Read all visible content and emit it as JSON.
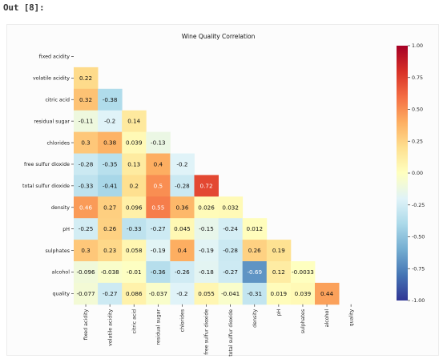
{
  "prompt": "Out [8]:",
  "chart_data": {
    "type": "heatmap",
    "title": "Wine Quality Correlation",
    "categories": [
      "fixed acidity",
      "volatile acidity",
      "citric acid",
      "residual sugar",
      "chlorides",
      "free sulfur dioxide",
      "total sulfur dioxide",
      "density",
      "pH",
      "sulphates",
      "alcohol",
      "quality"
    ],
    "values": [
      [],
      [
        "0.22"
      ],
      [
        "0.32",
        "-0.38"
      ],
      [
        "-0.11",
        "-0.2",
        "0.14"
      ],
      [
        "0.3",
        "0.38",
        "0.039",
        "-0.13"
      ],
      [
        "-0.28",
        "-0.35",
        "0.13",
        "0.4",
        "-0.2"
      ],
      [
        "-0.33",
        "-0.41",
        "0.2",
        "0.5",
        "-0.28",
        "0.72"
      ],
      [
        "0.46",
        "0.27",
        "0.096",
        "0.55",
        "0.36",
        "0.026",
        "0.032"
      ],
      [
        "-0.25",
        "0.26",
        "-0.33",
        "-0.27",
        "0.045",
        "-0.15",
        "-0.24",
        "0.012"
      ],
      [
        "0.3",
        "0.23",
        "0.058",
        "-0.19",
        "0.4",
        "-0.19",
        "-0.28",
        "0.26",
        "0.19"
      ],
      [
        "-0.096",
        "-0.038",
        "-0.01",
        "-0.36",
        "-0.26",
        "-0.18",
        "-0.27",
        "-0.69",
        "0.12",
        "-0.0033"
      ],
      [
        "-0.077",
        "-0.27",
        "0.086",
        "-0.037",
        "-0.2",
        "0.055",
        "-0.041",
        "-0.31",
        "0.019",
        "0.039",
        "0.44"
      ]
    ],
    "mask": "upper triangle and diagonal hidden",
    "colormap": "RdYlBu_r",
    "vmin": -1.0,
    "vmax": 1.0,
    "colorbar_ticks": [
      "1.00",
      "0.75",
      "0.50",
      "0.25",
      "0.00",
      "-0.25",
      "-0.50",
      "-0.75",
      "-1.00"
    ],
    "grid": false
  }
}
